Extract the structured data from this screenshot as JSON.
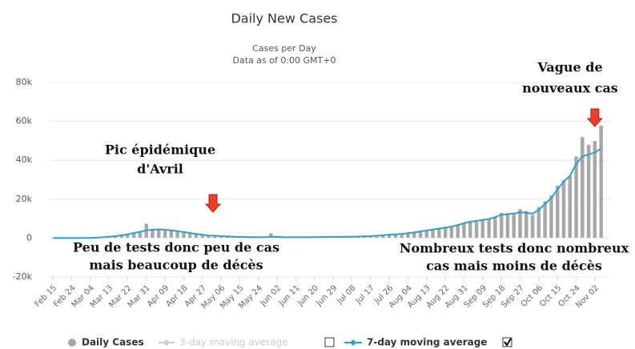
{
  "chart_data": {
    "type": "bar_line",
    "title": "Daily New Cases",
    "subtitle": [
      "Cases per Day",
      "Data as of 0:00 GMT+0"
    ],
    "categories": [
      "Feb 15",
      null,
      null,
      "Feb 24",
      null,
      null,
      "Mar 04",
      null,
      null,
      "Mar 13",
      null,
      null,
      "Mar 22",
      null,
      null,
      "Mar 31",
      null,
      null,
      "Apr 09",
      null,
      null,
      "Apr 18",
      null,
      null,
      "Apr 27",
      null,
      null,
      "May 06",
      null,
      null,
      "May 15",
      null,
      null,
      "May 24",
      null,
      null,
      "Jun 02",
      null,
      null,
      "Jun 11",
      null,
      null,
      "Jun 20",
      null,
      null,
      "Jun 29",
      null,
      null,
      "Jul 08",
      null,
      null,
      "Jul 17",
      null,
      null,
      "Jul 26",
      null,
      null,
      "Aug 04",
      null,
      null,
      "Aug 13",
      null,
      null,
      "Aug 22",
      null,
      null,
      "Aug 31",
      null,
      null,
      "Sep 09",
      null,
      null,
      "Sep 18",
      null,
      null,
      "Sep 27",
      null,
      null,
      "Oct 06",
      null,
      null,
      "Oct 15",
      null,
      null,
      "Oct 24",
      null,
      null,
      "Nov 02",
      null
    ],
    "series": [
      {
        "name": "Daily Cases",
        "color": "#a8a8a8",
        "values": [
          0,
          0,
          0,
          0,
          10,
          50,
          100,
          300,
          500,
          800,
          1000,
          1600,
          2000,
          3000,
          3500,
          7500,
          4500,
          5000,
          4500,
          4000,
          3500,
          3000,
          2500,
          2000,
          1500,
          1000,
          1500,
          1000,
          800,
          700,
          600,
          500,
          600,
          400,
          300,
          2500,
          500,
          400,
          400,
          450,
          450,
          500,
          500,
          550,
          600,
          600,
          600,
          700,
          700,
          800,
          900,
          1000,
          1200,
          1500,
          1800,
          2000,
          2200,
          2500,
          3000,
          3500,
          4000,
          4500,
          5000,
          5500,
          6000,
          7000,
          8000,
          9000,
          8500,
          9500,
          10000,
          11000,
          13000,
          12000,
          13000,
          15000,
          14000,
          12000,
          16000,
          19000,
          22000,
          27000,
          30000,
          32000,
          42000,
          52000,
          48000,
          50000,
          58000
        ]
      },
      {
        "name": "7-day moving average",
        "color": "#2f9fd0",
        "values": [
          0,
          0,
          0,
          0,
          5,
          30,
          80,
          200,
          400,
          700,
          1000,
          1400,
          1900,
          2600,
          3200,
          4000,
          4300,
          4500,
          4300,
          4000,
          3600,
          3100,
          2600,
          2100,
          1700,
          1300,
          1200,
          1000,
          850,
          700,
          600,
          550,
          500,
          450,
          400,
          700,
          600,
          450,
          420,
          440,
          460,
          480,
          500,
          530,
          570,
          600,
          630,
          680,
          720,
          790,
          880,
          990,
          1180,
          1450,
          1750,
          1950,
          2200,
          2500,
          2900,
          3400,
          3900,
          4400,
          4900,
          5400,
          5900,
          6700,
          7600,
          8400,
          8800,
          9300,
          9800,
          10800,
          12000,
          12300,
          12600,
          13200,
          13000,
          12500,
          14500,
          17500,
          20500,
          25000,
          29000,
          32000,
          38000,
          42000,
          43000,
          44000,
          46000
        ]
      }
    ],
    "hidden_series": [
      {
        "name": "3-day moving average",
        "color": "#cccccc"
      }
    ],
    "ylim": [
      -20000,
      80000
    ],
    "yticks": [
      {
        "value": -20000,
        "label": "-20k"
      },
      0,
      {
        "value": 20000,
        "label": "20k"
      },
      {
        "value": 40000,
        "label": "40k"
      },
      {
        "value": 60000,
        "label": "60k"
      },
      {
        "value": 80000,
        "label": "80k"
      }
    ],
    "grid": true,
    "annotations": [
      {
        "lines": [
          "Pic épidémique",
          "d'Avril"
        ],
        "category": 18
      },
      {
        "lines": [
          "Vague de",
          "nouveaux cas"
        ],
        "category": 87
      },
      {
        "lines": [
          "Peu de tests donc peu de cas",
          "mais  beaucoup de décès"
        ]
      },
      {
        "lines": [
          "Nombreux tests donc nombreux",
          "cas mais  moins de décès"
        ]
      }
    ]
  }
}
